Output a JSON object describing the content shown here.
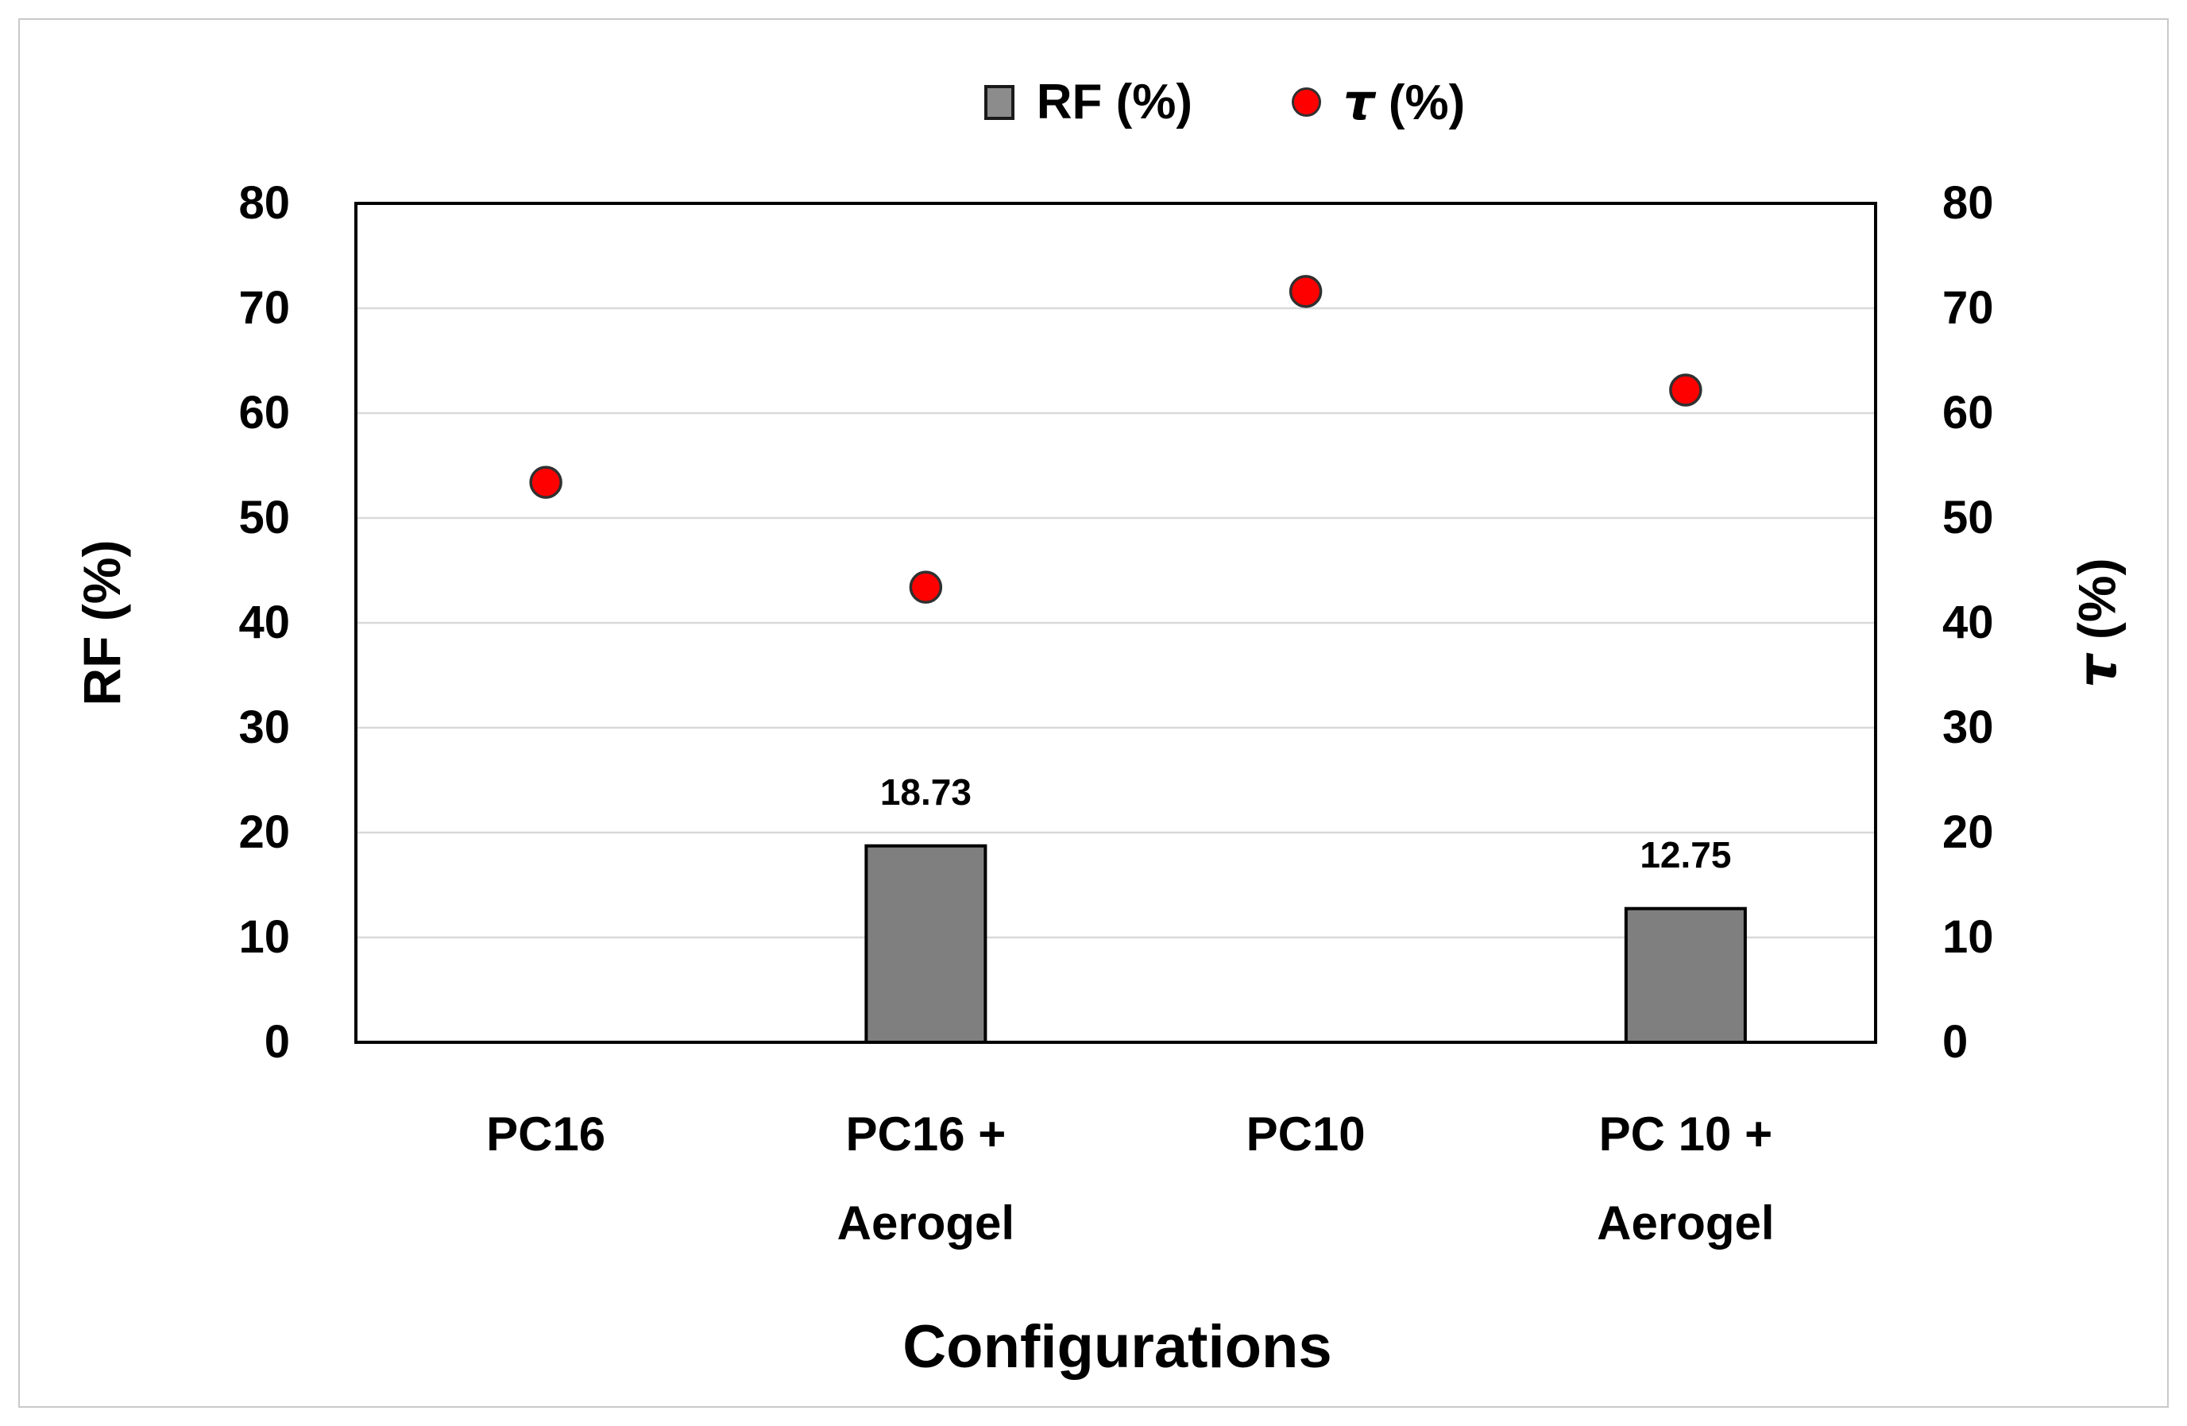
{
  "legend": {
    "rf_label": "RF (%)",
    "tau_glyph": "τ",
    "tau_rest": "(%)"
  },
  "axes": {
    "left_title": "RF (%)",
    "right_title_glyph": "τ",
    "right_title_rest": "(%)",
    "x_title": "Configurations"
  },
  "chart_data": {
    "type": "combo",
    "subtype": "bar+scatter",
    "categories": [
      [
        "PC16"
      ],
      [
        "PC16 +",
        "Aerogel"
      ],
      [
        "PC10"
      ],
      [
        "PC 10 +",
        "Aerogel"
      ]
    ],
    "x_label": "Configurations",
    "left_axis": {
      "title": "RF (%)",
      "min": 0,
      "max": 80,
      "step": 10,
      "ticks": [
        "0",
        "10",
        "20",
        "30",
        "40",
        "50",
        "60",
        "70",
        "80"
      ]
    },
    "right_axis": {
      "title": "τ (%)",
      "min": 0,
      "max": 80,
      "step": 10,
      "ticks": [
        "0",
        "10",
        "20",
        "30",
        "40",
        "50",
        "60",
        "70",
        "80"
      ]
    },
    "gridlines": "horizontal, every 10",
    "legend_position": "top",
    "series": [
      {
        "name": "RF (%)",
        "type": "bar",
        "color": "#7f7f7f",
        "border_color": "#000000",
        "values": [
          null,
          18.73,
          null,
          12.75
        ],
        "data_labels": [
          null,
          "18.73",
          null,
          "12.75"
        ]
      },
      {
        "name": "τ (%)",
        "type": "scatter",
        "color": "#fe0000",
        "border_color": "#303030",
        "values": [
          53.4,
          43.4,
          71.6,
          62.2
        ]
      }
    ]
  }
}
